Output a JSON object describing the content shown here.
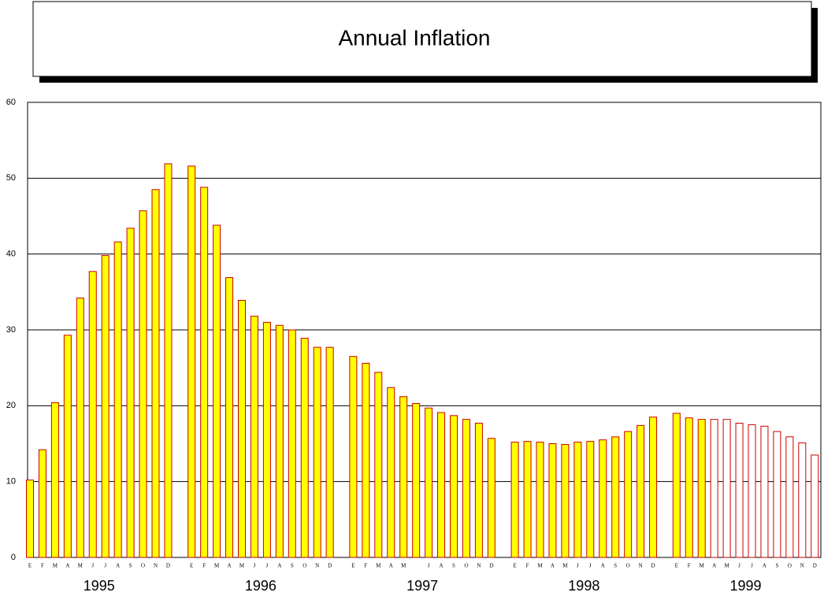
{
  "chart_data": {
    "type": "bar",
    "title": "Annual Inflation",
    "ylim": [
      0,
      60
    ],
    "yticks": [
      0,
      10,
      20,
      30,
      40,
      50,
      60
    ],
    "grid": true,
    "fill_color": "#ffff00",
    "edge_color": "#cc0000",
    "years": [
      {
        "label": "1995",
        "categories": [
          "E",
          "F",
          "M",
          "A",
          "M",
          "J",
          "J",
          "A",
          "S",
          "O",
          "N",
          "D"
        ],
        "values": [
          10.2,
          14.2,
          20.4,
          29.3,
          34.2,
          37.7,
          39.8,
          41.6,
          43.4,
          45.7,
          48.5,
          51.9
        ],
        "bar_style": [
          "solid",
          "solid",
          "solid",
          "solid",
          "solid",
          "solid",
          "solid",
          "solid",
          "solid",
          "solid",
          "solid",
          "solid"
        ]
      },
      {
        "label": "1996",
        "categories": [
          "E",
          "F",
          "M",
          "A",
          "M",
          "J",
          "J",
          "A",
          "S",
          "O",
          "N",
          "D"
        ],
        "values": [
          51.6,
          48.8,
          43.8,
          36.9,
          33.9,
          31.8,
          31.0,
          30.6,
          30.0,
          28.9,
          27.7,
          27.7
        ],
        "bar_style": [
          "solid",
          "solid",
          "solid",
          "solid",
          "solid",
          "solid",
          "solid",
          "solid",
          "solid",
          "solid",
          "solid",
          "solid"
        ]
      },
      {
        "label": "1997",
        "categories": [
          "E",
          "F",
          "M",
          "A",
          "M",
          null,
          "J",
          "A",
          "S",
          "O",
          "N",
          "D"
        ],
        "values": [
          26.5,
          25.6,
          24.4,
          22.4,
          21.2,
          20.3,
          19.7,
          19.1,
          18.7,
          18.2,
          17.7,
          15.7
        ],
        "bar_style": [
          "solid",
          "solid",
          "solid",
          "solid",
          "solid",
          "solid",
          "solid",
          "solid",
          "solid",
          "solid",
          "solid",
          "solid"
        ]
      },
      {
        "label": "1998",
        "categories": [
          "E",
          "F",
          "M",
          "A",
          "M",
          "J",
          "J",
          "A",
          "S",
          "O",
          "N",
          "D"
        ],
        "values": [
          15.2,
          15.3,
          15.2,
          15.0,
          14.9,
          15.2,
          15.3,
          15.5,
          15.9,
          16.6,
          17.4,
          18.5
        ],
        "bar_style": [
          "solid",
          "solid",
          "solid",
          "solid",
          "solid",
          "solid",
          "solid",
          "solid",
          "solid",
          "solid",
          "solid",
          "solid"
        ]
      },
      {
        "label": "1999",
        "categories": [
          "E",
          "F",
          "M",
          "A",
          "M",
          "J",
          "J",
          "A",
          "S",
          "O",
          "N",
          "D"
        ],
        "values": [
          19.0,
          18.4,
          18.2,
          18.2,
          18.2,
          17.7,
          17.5,
          17.3,
          16.6,
          15.9,
          15.1,
          13.5
        ],
        "bar_style": [
          "solid",
          "solid",
          "solid",
          "outline",
          "outline",
          "outline",
          "outline",
          "outline",
          "outline",
          "outline",
          "outline",
          "outline"
        ]
      }
    ]
  }
}
